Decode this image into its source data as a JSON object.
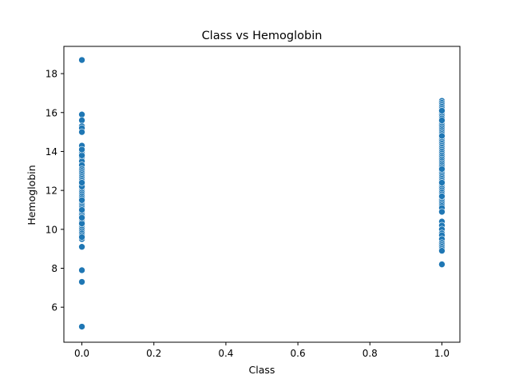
{
  "chart_data": {
    "type": "scatter",
    "title": "Class vs Hemoglobin",
    "xlabel": "Class",
    "ylabel": "Hemoglobin",
    "xlim": [
      -0.05,
      1.05
    ],
    "ylim": [
      4.2,
      19.4
    ],
    "x_ticks": [
      0.0,
      0.2,
      0.4,
      0.6,
      0.8,
      1.0
    ],
    "x_tick_labels": [
      "0.0",
      "0.2",
      "0.4",
      "0.6",
      "0.8",
      "1.0"
    ],
    "y_ticks": [
      6,
      8,
      10,
      12,
      14,
      16,
      18
    ],
    "y_tick_labels": [
      "6",
      "8",
      "10",
      "12",
      "14",
      "16",
      "18"
    ],
    "grid": false,
    "legend": "none",
    "marker_color": "#1f77b4",
    "series": [
      {
        "x": [
          0,
          0,
          0,
          0,
          0,
          0,
          0,
          0,
          0,
          0,
          0,
          0,
          0,
          0,
          0,
          0,
          0,
          0,
          0,
          0,
          0,
          0,
          0,
          0,
          0,
          0,
          0,
          0,
          0,
          0,
          0,
          0,
          0,
          0,
          0,
          0,
          0,
          0,
          0,
          0,
          0,
          0,
          0,
          0,
          0,
          0,
          0,
          0,
          0,
          0,
          0,
          0,
          0,
          0,
          0,
          0,
          0,
          0,
          0,
          0,
          0,
          0
        ],
        "y": [
          18.7,
          15.9,
          15.6,
          15.3,
          15.2,
          15.0,
          14.3,
          14.0,
          13.9,
          13.7,
          13.5,
          13.3,
          13.1,
          13.0,
          12.9,
          12.8,
          12.7,
          12.6,
          12.5,
          12.4,
          12.3,
          12.2,
          12.1,
          12.0,
          11.9,
          11.8,
          11.7,
          11.6,
          11.5,
          11.4,
          11.3,
          11.2,
          11.1,
          11.0,
          10.9,
          10.8,
          10.7,
          10.6,
          10.5,
          10.4,
          10.3,
          10.2,
          10.1,
          10.0,
          9.9,
          9.8,
          9.7,
          9.6,
          9.5,
          9.1,
          7.9,
          7.3,
          5.0,
          13.8,
          12.2,
          11.0,
          10.3,
          9.6,
          14.1,
          12.4,
          11.5,
          10.6
        ]
      },
      {
        "x": [
          1,
          1,
          1,
          1,
          1,
          1,
          1,
          1,
          1,
          1,
          1,
          1,
          1,
          1,
          1,
          1,
          1,
          1,
          1,
          1,
          1,
          1,
          1,
          1,
          1,
          1,
          1,
          1,
          1,
          1,
          1,
          1,
          1,
          1,
          1,
          1,
          1,
          1,
          1,
          1,
          1,
          1,
          1,
          1,
          1,
          1,
          1,
          1,
          1,
          1,
          1,
          1,
          1,
          1,
          1,
          1,
          1,
          1,
          1,
          1,
          1,
          1,
          1,
          1,
          1,
          1,
          1,
          1,
          1,
          1,
          1,
          1,
          1,
          1,
          1
        ],
        "y": [
          16.6,
          16.5,
          16.4,
          16.3,
          16.2,
          16.1,
          16.0,
          15.9,
          15.8,
          15.7,
          15.6,
          15.5,
          15.4,
          15.3,
          15.2,
          15.1,
          15.0,
          14.9,
          14.8,
          14.7,
          14.6,
          14.5,
          14.4,
          14.3,
          14.2,
          14.1,
          14.0,
          13.9,
          13.8,
          13.7,
          13.6,
          13.5,
          13.4,
          13.3,
          13.2,
          13.1,
          13.0,
          12.9,
          12.8,
          12.7,
          12.6,
          12.5,
          12.4,
          12.3,
          12.2,
          12.1,
          12.0,
          11.9,
          11.8,
          11.7,
          11.6,
          11.5,
          11.4,
          11.3,
          11.2,
          11.1,
          10.4,
          10.2,
          10.0,
          9.8,
          9.7,
          9.5,
          9.3,
          9.2,
          9.1,
          9.0,
          8.9,
          8.2,
          15.6,
          14.8,
          13.1,
          12.4,
          11.7,
          10.9,
          16.1
        ]
      }
    ]
  }
}
